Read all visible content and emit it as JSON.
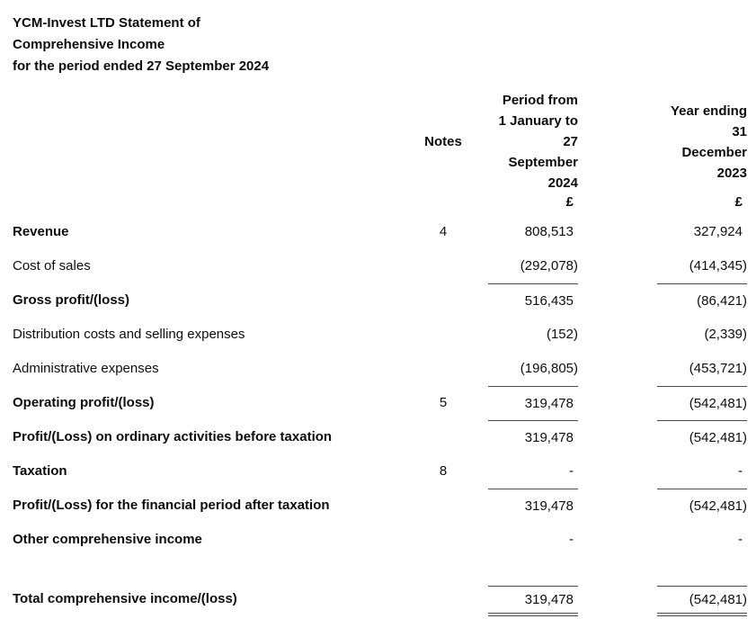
{
  "title": {
    "lines": [
      "YCM-Invest LTD Statement of",
      "Comprehensive Income",
      "for the period ended 27 September 2024"
    ]
  },
  "table": {
    "header": {
      "notes_label": "Notes",
      "period_header_lines": [
        "Period from",
        "1 January to",
        "27",
        "September",
        "2024"
      ],
      "year_header_lines": [
        "Year ending",
        "31",
        "December",
        "2023"
      ],
      "currency": "£"
    },
    "rows": [
      {
        "label": "Revenue",
        "bold": true,
        "note": "4",
        "period": "808,513",
        "year": "327,924",
        "line_above": false,
        "total": false
      },
      {
        "label": "Cost of sales",
        "bold": false,
        "note": "",
        "period": "(292,078)",
        "year": "(414,345)",
        "line_above": false,
        "total": false
      },
      {
        "label": "Gross profit/(loss)",
        "bold": true,
        "note": "",
        "period": "516,435",
        "year": "(86,421)",
        "line_above": true,
        "total": false
      },
      {
        "label": "Distribution costs and selling expenses",
        "bold": false,
        "note": "",
        "period": "(152)",
        "year": "(2,339)",
        "line_above": false,
        "total": false
      },
      {
        "label": "Administrative expenses",
        "bold": false,
        "note": "",
        "period": "(196,805)",
        "year": "(453,721)",
        "line_above": false,
        "total": false
      },
      {
        "label": "Operating profit/(loss)",
        "bold": true,
        "note": "5",
        "period": "319,478",
        "year": "(542,481)",
        "line_above": true,
        "total": false
      },
      {
        "label": "Profit/(Loss) on ordinary activities before taxation",
        "bold": true,
        "note": "",
        "period": "319,478",
        "year": "(542,481)",
        "line_above": true,
        "total": false
      },
      {
        "label": "Taxation",
        "bold": true,
        "note": "8",
        "period": "-",
        "year": "-",
        "line_above": false,
        "total": false
      },
      {
        "label": "Profit/(Loss) for the financial period after taxation",
        "bold": true,
        "note": "",
        "period": "319,478",
        "year": "(542,481)",
        "line_above": true,
        "total": false
      },
      {
        "label": "Other comprehensive income",
        "bold": true,
        "note": "",
        "period": "-",
        "year": "-",
        "line_above": false,
        "total": false
      },
      {
        "label": "Total comprehensive income/(loss)",
        "bold": true,
        "note": "",
        "period": "319,478",
        "year": "(542,481)",
        "line_above": true,
        "total": true
      }
    ]
  }
}
